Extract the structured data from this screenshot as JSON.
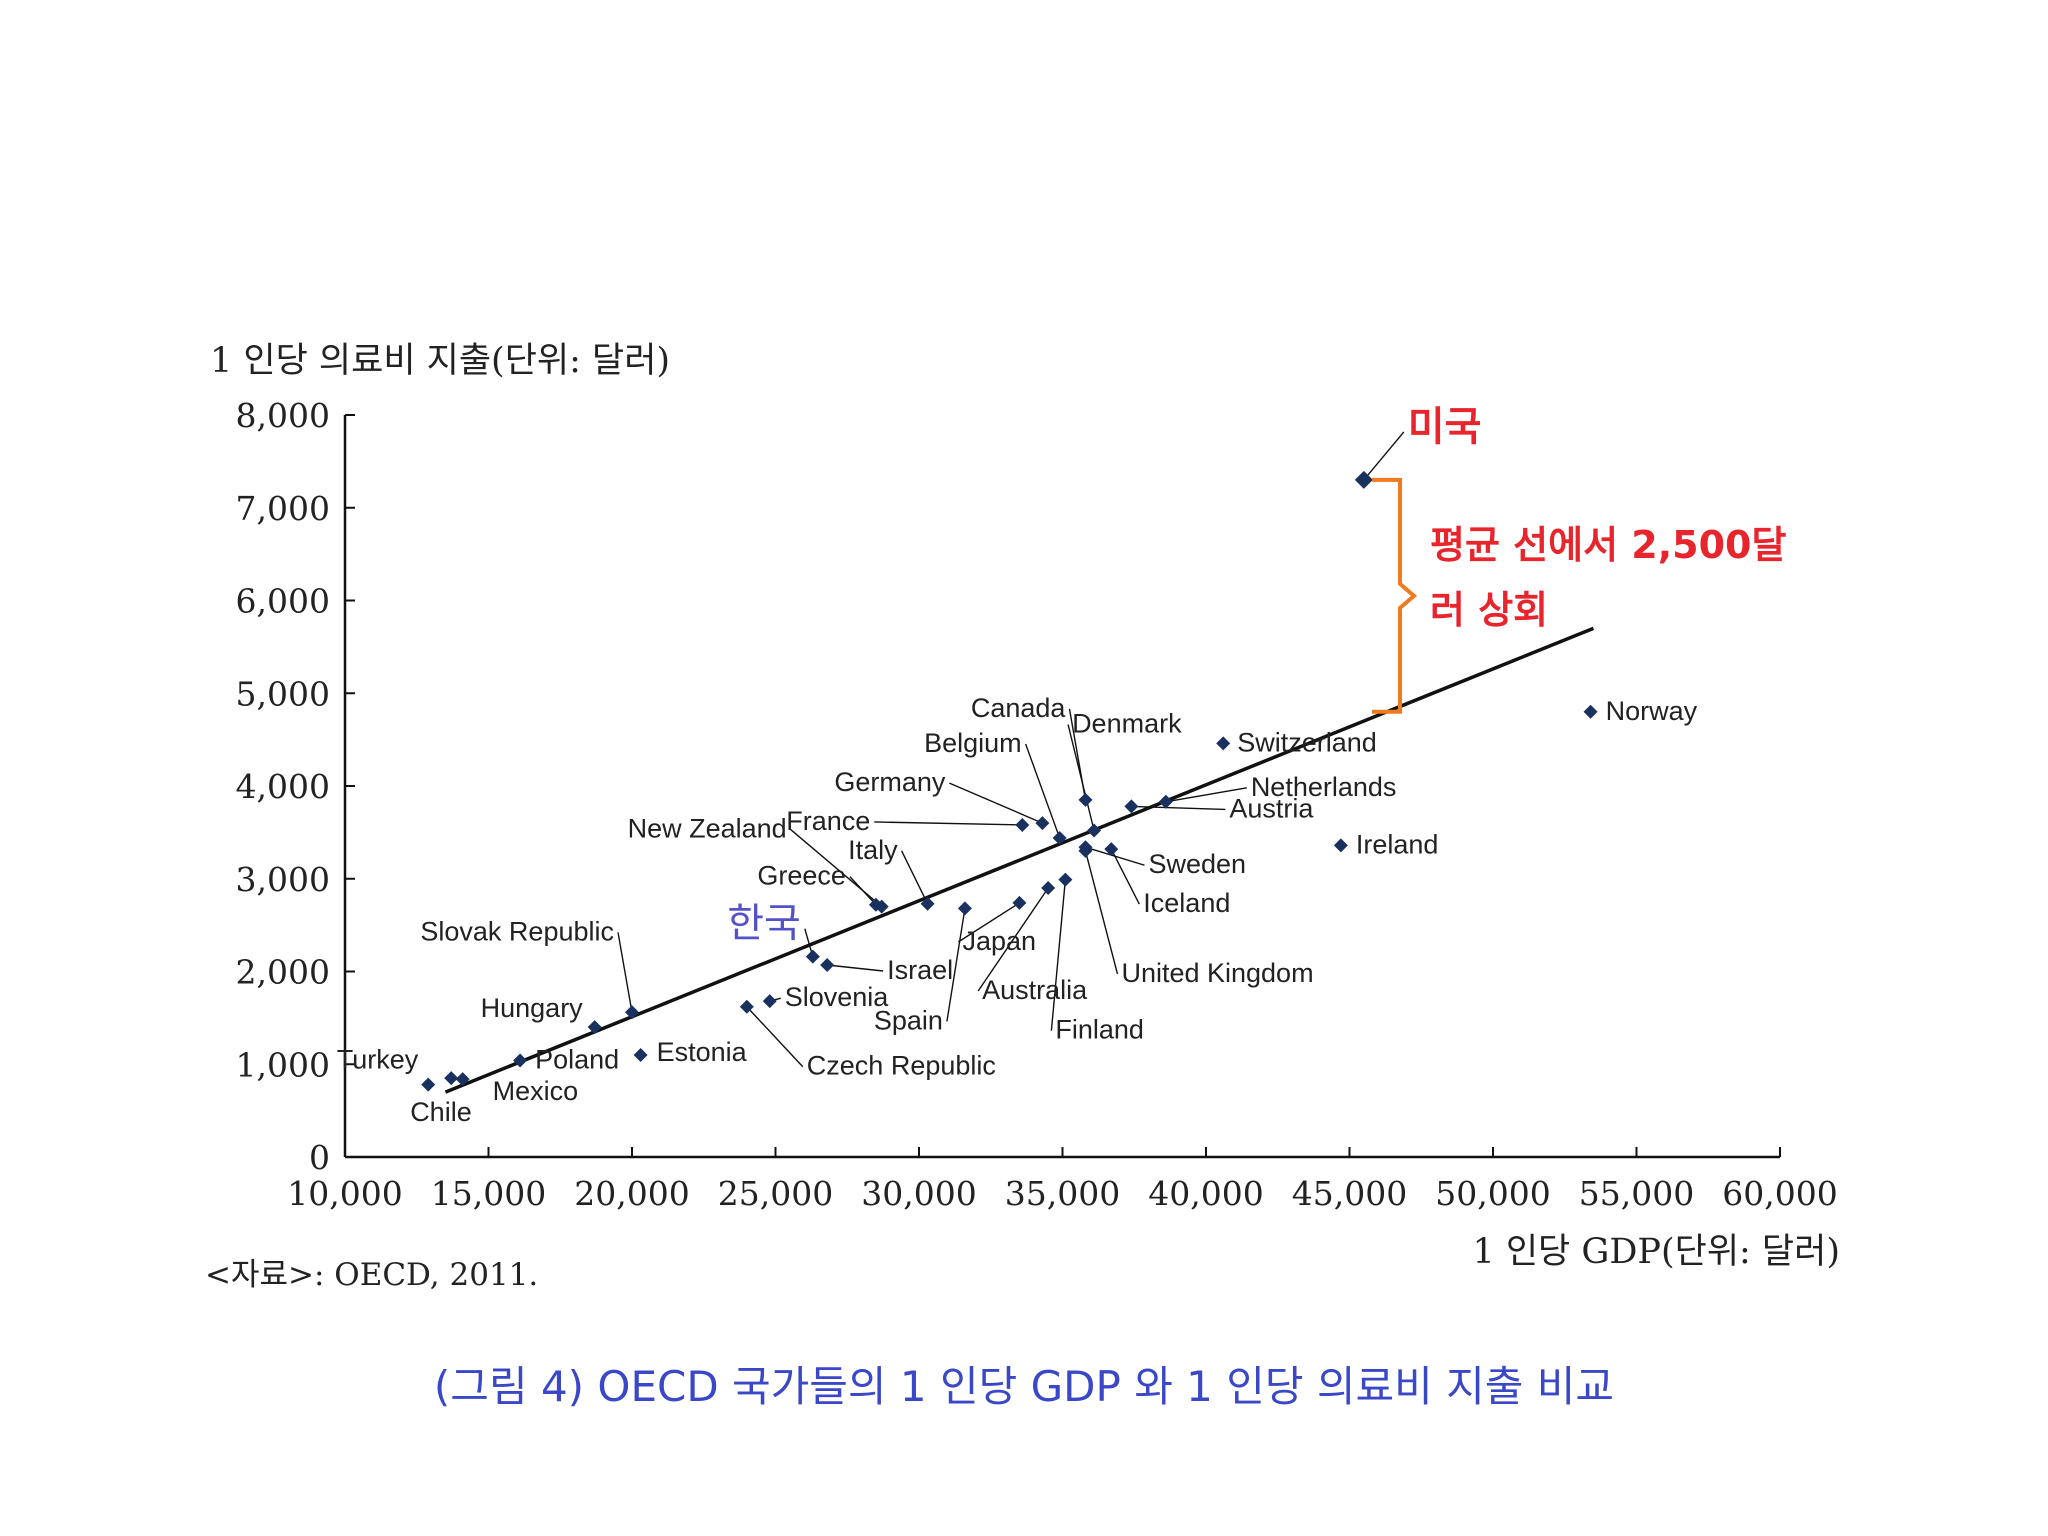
{
  "chart_data": {
    "type": "scatter",
    "ylabel": "1 인당 의료비 지출(단위: 달러)",
    "xlabel": "1 인당 GDP(단위: 달러)",
    "xlim": [
      10000,
      60000
    ],
    "ylim": [
      0,
      8000
    ],
    "xticks": [
      "10,000",
      "15,000",
      "20,000",
      "25,000",
      "30,000",
      "35,000",
      "40,000",
      "45,000",
      "50,000",
      "55,000",
      "60,000"
    ],
    "yticks": [
      "0",
      "1,000",
      "2,000",
      "3,000",
      "4,000",
      "5,000",
      "6,000",
      "7,000",
      "8,000"
    ],
    "trendline": {
      "x": [
        13500,
        53500
      ],
      "y": [
        700,
        5700
      ]
    },
    "points": [
      {
        "label": "Turkey",
        "x": 12900,
        "y": 780
      },
      {
        "label": "Chile",
        "x": 13700,
        "y": 850
      },
      {
        "label": "Mexico",
        "x": 14100,
        "y": 840
      },
      {
        "label": "Poland",
        "x": 16100,
        "y": 1040
      },
      {
        "label": "Hungary",
        "x": 18700,
        "y": 1400
      },
      {
        "label": "Estonia",
        "x": 20300,
        "y": 1100
      },
      {
        "label": "Slovak Republic",
        "x": 20000,
        "y": 1560
      },
      {
        "label": "Czech Republic",
        "x": 24000,
        "y": 1620
      },
      {
        "label": "Slovenia",
        "x": 24800,
        "y": 1680
      },
      {
        "label": "Israel",
        "x": 26800,
        "y": 2070
      },
      {
        "label": "한국",
        "x": 26300,
        "y": 2160
      },
      {
        "label": "New Zealand",
        "x": 28700,
        "y": 2700
      },
      {
        "label": "Greece",
        "x": 28500,
        "y": 2720
      },
      {
        "label": "Italy",
        "x": 30300,
        "y": 2730
      },
      {
        "label": "Spain",
        "x": 31600,
        "y": 2680
      },
      {
        "label": "Japan",
        "x": 33500,
        "y": 2740
      },
      {
        "label": "Australia",
        "x": 34500,
        "y": 2900
      },
      {
        "label": "Finland",
        "x": 35100,
        "y": 2990
      },
      {
        "label": "France",
        "x": 33600,
        "y": 3580
      },
      {
        "label": "Germany",
        "x": 34300,
        "y": 3600
      },
      {
        "label": "Belgium",
        "x": 34900,
        "y": 3440
      },
      {
        "label": "Canada",
        "x": 35800,
        "y": 3850
      },
      {
        "label": "Denmark",
        "x": 36100,
        "y": 3520
      },
      {
        "label": "United Kingdom",
        "x": 35800,
        "y": 3300
      },
      {
        "label": "Iceland",
        "x": 36700,
        "y": 3320
      },
      {
        "label": "Sweden",
        "x": 35800,
        "y": 3340
      },
      {
        "label": "Austria",
        "x": 37400,
        "y": 3780
      },
      {
        "label": "Netherlands",
        "x": 38600,
        "y": 3830
      },
      {
        "label": "Switzerland",
        "x": 40600,
        "y": 4460
      },
      {
        "label": "Ireland",
        "x": 44700,
        "y": 3360
      },
      {
        "label": "Norway",
        "x": 53400,
        "y": 4800
      },
      {
        "label": "미국",
        "x": 45500,
        "y": 7300
      }
    ],
    "annotation": {
      "text": "평균 선에서 2,500달러 상회",
      "line1": "평균 선에서 2,500달",
      "line2": "러 상회",
      "top_value": 7300,
      "bottom_value": 4800
    },
    "colors": {
      "point": "#1a3160",
      "highlight": "#e8242c",
      "korea": "#5452c8",
      "bracket": "#f07a20",
      "caption": "#3a48c8"
    }
  },
  "source": "<자료>: OECD, 2011.",
  "caption": "(그림 4) OECD 국가들의 1 인당 GDP 와 1 인당 의료비 지출 비교"
}
